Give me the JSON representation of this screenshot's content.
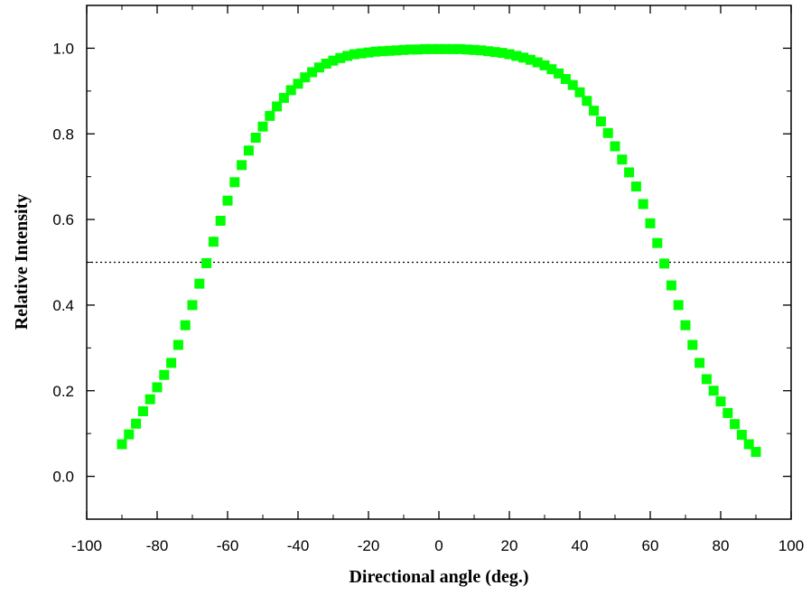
{
  "chart_data": {
    "type": "scatter",
    "title": "",
    "xlabel": "Directional angle (deg.)",
    "ylabel": "Relative Intensity",
    "xlim": [
      -100,
      100
    ],
    "ylim": [
      -0.1,
      1.1
    ],
    "xticks": [
      -100,
      -80,
      -60,
      -40,
      -20,
      0,
      20,
      40,
      60,
      80,
      100
    ],
    "yticks": [
      0.0,
      0.2,
      0.4,
      0.6,
      0.8,
      1.0
    ],
    "xtick_labels": [
      "-100",
      "-80",
      "-60",
      "-40",
      "-20",
      "0",
      "20",
      "40",
      "60",
      "80",
      "100"
    ],
    "ytick_labels": [
      "0.0",
      "0.2",
      "0.4",
      "0.6",
      "0.8",
      "1.0"
    ],
    "grid": false,
    "reference_line": {
      "y": 0.5,
      "style": "dotted"
    },
    "marker": "square",
    "marker_color": "#00ff00",
    "series": [
      {
        "x": [
          -90,
          -88,
          -86,
          -84,
          -82,
          -80,
          -78,
          -76,
          -74,
          -72,
          -70,
          -68,
          -66,
          -64,
          -62,
          -60,
          -58,
          -56,
          -54,
          -52,
          -50,
          -48,
          -46,
          -44,
          -42,
          -40,
          -38,
          -36,
          -34,
          -32,
          -30,
          -28,
          -26,
          -24,
          -22,
          -20,
          -18,
          -16,
          -14,
          -12,
          -10,
          -8,
          -6,
          -4,
          -2,
          0,
          2,
          4,
          6,
          8,
          10,
          12,
          14,
          16,
          18,
          20,
          22,
          24,
          26,
          28,
          30,
          32,
          34,
          36,
          38,
          40,
          42,
          44,
          46,
          48,
          50,
          52,
          54,
          56,
          58,
          60,
          62,
          64,
          66,
          68,
          70,
          72,
          74,
          76,
          78,
          80,
          82,
          84,
          86,
          88,
          90
        ],
        "y": [
          0.075,
          0.098,
          0.123,
          0.152,
          0.18,
          0.208,
          0.237,
          0.265,
          0.307,
          0.353,
          0.4,
          0.45,
          0.498,
          0.548,
          0.597,
          0.644,
          0.687,
          0.727,
          0.761,
          0.791,
          0.817,
          0.842,
          0.864,
          0.884,
          0.902,
          0.917,
          0.932,
          0.944,
          0.955,
          0.964,
          0.971,
          0.977,
          0.982,
          0.986,
          0.988,
          0.99,
          0.992,
          0.993,
          0.994,
          0.995,
          0.996,
          0.997,
          0.997,
          0.998,
          0.998,
          0.998,
          0.998,
          0.998,
          0.998,
          0.997,
          0.996,
          0.995,
          0.993,
          0.991,
          0.989,
          0.986,
          0.982,
          0.978,
          0.973,
          0.967,
          0.96,
          0.951,
          0.941,
          0.928,
          0.914,
          0.897,
          0.877,
          0.854,
          0.829,
          0.802,
          0.771,
          0.74,
          0.71,
          0.677,
          0.636,
          0.591,
          0.545,
          0.497,
          0.446,
          0.4,
          0.353,
          0.307,
          0.265,
          0.227,
          0.2,
          0.175,
          0.148,
          0.122,
          0.097,
          0.075,
          0.057
        ]
      }
    ]
  }
}
